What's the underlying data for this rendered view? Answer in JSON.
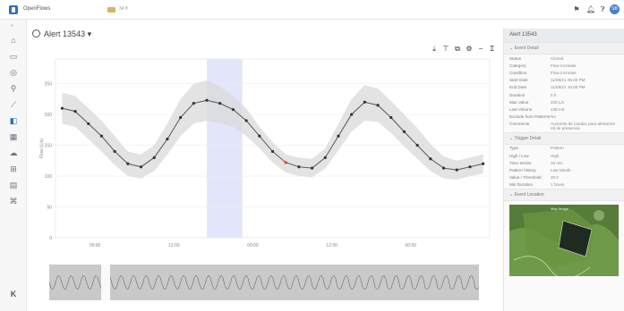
{
  "header": {
    "app_name": "OpenFlows",
    "breadcrumb": "34 ft",
    "icons": [
      "flag-icon",
      "bell-icon",
      "help-icon"
    ],
    "avatar_initials": "SB"
  },
  "sidebar": {
    "items": [
      "home-icon",
      "monitor-icon",
      "eye-icon",
      "pin-icon",
      "trend-icon",
      "alert-icon",
      "grid-icon",
      "cloud-icon",
      "network-icon",
      "document-icon",
      "building-icon"
    ],
    "active_index": 5,
    "footer_icon": "brand-k-icon"
  },
  "alert": {
    "title": "Alert 13543"
  },
  "toolbar": {
    "icons": [
      "download-icon",
      "range-icon",
      "layers-icon",
      "settings-icon",
      "minus-icon",
      "sigma-icon"
    ]
  },
  "chart_data": {
    "type": "line",
    "title": "",
    "ylabel": "Flow (L/s)",
    "xlabel": "",
    "ylim": [
      0,
      290
    ],
    "yticks": [
      0,
      50,
      100,
      150,
      200,
      250
    ],
    "x_range_hours": [
      -3,
      30
    ],
    "xticks": [
      {
        "x": 0,
        "label": "00:00"
      },
      {
        "x": 6,
        "label": "12:00"
      },
      {
        "x": 12,
        "label": "00:00"
      },
      {
        "x": 18,
        "label": "12:00"
      },
      {
        "x": 24,
        "label": "00:00"
      }
    ],
    "highlight_range": [
      8.5,
      11.2
    ],
    "series": [
      {
        "x": [
          -2.5,
          -1.5,
          -0.5,
          0.5,
          1.5,
          2.5,
          3.5,
          4.5,
          5.5,
          6.5,
          7.5,
          8.5,
          9.5,
          10.5,
          11.5,
          12.5,
          13.5,
          14.5,
          15.5,
          16.5,
          17.5,
          18.5,
          19.5,
          20.5,
          21.5,
          22.5,
          23.5,
          24.5,
          25.5,
          26.5,
          27.5,
          28.5,
          29.5
        ],
        "values": [
          210,
          205,
          185,
          165,
          140,
          120,
          115,
          130,
          160,
          195,
          218,
          223,
          218,
          208,
          190,
          165,
          140,
          122,
          115,
          113,
          130,
          165,
          200,
          220,
          215,
          195,
          172,
          150,
          128,
          113,
          110,
          115,
          120
        ]
      }
    ],
    "band_upper": [
      235,
      230,
      210,
      190,
      165,
      140,
      135,
      150,
      185,
      225,
      250,
      255,
      245,
      230,
      210,
      180,
      155,
      135,
      130,
      128,
      145,
      185,
      225,
      248,
      242,
      222,
      200,
      178,
      152,
      132,
      125,
      130,
      135
    ],
    "band_lower": [
      185,
      180,
      160,
      140,
      118,
      100,
      96,
      108,
      135,
      165,
      185,
      190,
      185,
      180,
      165,
      145,
      122,
      106,
      100,
      98,
      112,
      142,
      172,
      190,
      188,
      170,
      148,
      128,
      108,
      96,
      94,
      100,
      104
    ]
  },
  "panel": {
    "title": "Alert 13543",
    "event_section": "Event Detail",
    "event_rows": [
      {
        "k": "Status",
        "v": "Closed"
      },
      {
        "k": "Category",
        "v": "Flow Increase"
      },
      {
        "k": "Condition",
        "v": "Flow Increase"
      },
      {
        "k": "Start Date",
        "v": "11/08/21 05:00 PM"
      },
      {
        "k": "End Date",
        "v": "11/08/21 10:00 PM"
      },
      {
        "k": "Duration",
        "v": "5 h"
      },
      {
        "k": "Max Value",
        "v": "228 L/s"
      },
      {
        "k": "Last Volume",
        "v": "438 m3"
      },
      {
        "k": "Exclude from Patterns",
        "v": "No"
      },
      {
        "k": "Comments",
        "v": "Aumento de caudal, para alertarme rol de presencia"
      }
    ],
    "trigger_section": "Trigger Detail",
    "trigger_rows": [
      {
        "k": "Type",
        "v": "Pattern"
      },
      {
        "k": "High / Low",
        "v": "High"
      },
      {
        "k": "Time Series",
        "v": "15 min"
      },
      {
        "k": "Pattern history",
        "v": "Last Month"
      },
      {
        "k": "Value / Threshold",
        "v": "20.0"
      },
      {
        "k": "Min Duration",
        "v": "1 hours"
      }
    ],
    "location_section": "Event Location",
    "map_label": "Map Image"
  }
}
